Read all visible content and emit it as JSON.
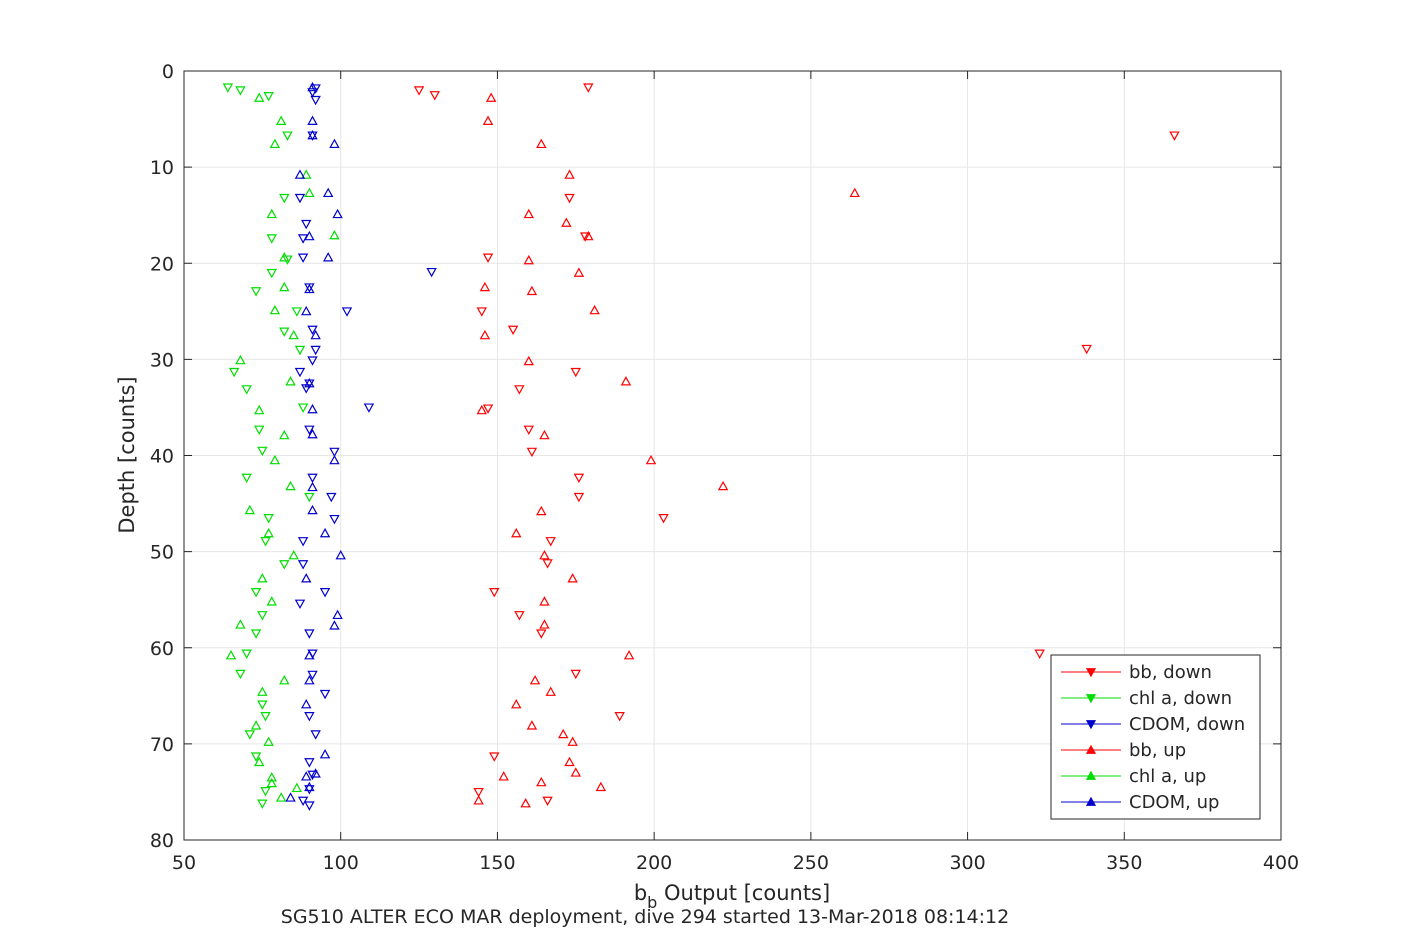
{
  "chart_data": {
    "type": "scatter",
    "title": "",
    "xlabel_main": "b",
    "xlabel_sub": "b",
    "xlabel_rest": " Output [counts]",
    "ylabel": "Depth [counts]",
    "caption": "SG510 ALTER ECO MAR deployment, dive 294 started 13-Mar-2018 08:14:12",
    "xlim": [
      50,
      400
    ],
    "ylim": [
      0,
      80
    ],
    "y_reversed": true,
    "grid": true,
    "legend_position": "bottom-right",
    "xticks": [
      {
        "v": 50,
        "label": "50"
      },
      {
        "v": 100,
        "label": "100"
      },
      {
        "v": 150,
        "label": "150"
      },
      {
        "v": 200,
        "label": "200"
      },
      {
        "v": 250,
        "label": "250"
      },
      {
        "v": 300,
        "label": "300"
      },
      {
        "v": 350,
        "label": "350"
      },
      {
        "v": 400,
        "label": "400"
      }
    ],
    "yticks": [
      {
        "v": 0,
        "label": "0"
      },
      {
        "v": 10,
        "label": "10"
      },
      {
        "v": 20,
        "label": "20"
      },
      {
        "v": 30,
        "label": "30"
      },
      {
        "v": 40,
        "label": "40"
      },
      {
        "v": 50,
        "label": "50"
      },
      {
        "v": 60,
        "label": "60"
      },
      {
        "v": 70,
        "label": "70"
      },
      {
        "v": 80,
        "label": "80"
      }
    ],
    "series": [
      {
        "name": "bb, down",
        "color": "#ff0000",
        "marker": "triangle-down",
        "points": [
          [
            125,
            2
          ],
          [
            130,
            2.5
          ],
          [
            179,
            1.7
          ],
          [
            366,
            6.7
          ],
          [
            178,
            17.2
          ],
          [
            173,
            13.2
          ],
          [
            147,
            19.4
          ],
          [
            145,
            25
          ],
          [
            155,
            26.9
          ],
          [
            338,
            28.9
          ],
          [
            175,
            31.3
          ],
          [
            157,
            33.1
          ],
          [
            147,
            35.1
          ],
          [
            160,
            37.3
          ],
          [
            161,
            39.6
          ],
          [
            176,
            42.3
          ],
          [
            176,
            44.3
          ],
          [
            203,
            46.5
          ],
          [
            167,
            48.9
          ],
          [
            166,
            51.2
          ],
          [
            149,
            54.2
          ],
          [
            157,
            56.6
          ],
          [
            164,
            58.5
          ],
          [
            323,
            60.6
          ],
          [
            175,
            62.7
          ],
          [
            189,
            67.1
          ],
          [
            149,
            71.3
          ],
          [
            144,
            75
          ],
          [
            166,
            75.9
          ]
        ]
      },
      {
        "name": "chl a, down",
        "color": "#00dd00",
        "marker": "triangle-down",
        "points": [
          [
            64,
            1.7
          ],
          [
            68,
            2
          ],
          [
            77,
            2.6
          ],
          [
            83,
            6.7
          ],
          [
            82,
            13.2
          ],
          [
            78,
            17.4
          ],
          [
            83,
            19.6
          ],
          [
            78,
            21
          ],
          [
            73,
            22.9
          ],
          [
            86,
            25
          ],
          [
            82,
            27.1
          ],
          [
            87,
            29
          ],
          [
            66,
            31.3
          ],
          [
            70,
            33.1
          ],
          [
            88,
            35
          ],
          [
            74,
            37.3
          ],
          [
            75,
            39.5
          ],
          [
            70,
            42.3
          ],
          [
            90,
            44.3
          ],
          [
            77,
            46.5
          ],
          [
            76,
            48.9
          ],
          [
            82,
            51.3
          ],
          [
            73,
            54.2
          ],
          [
            75,
            56.6
          ],
          [
            73,
            58.5
          ],
          [
            70,
            60.6
          ],
          [
            68,
            62.7
          ],
          [
            75,
            65.9
          ],
          [
            76,
            67.1
          ],
          [
            71,
            69
          ],
          [
            73,
            71.3
          ],
          [
            76,
            74.9
          ],
          [
            75,
            76.2
          ]
        ]
      },
      {
        "name": "CDOM, down",
        "color": "#0000cc",
        "marker": "triangle-down",
        "points": [
          [
            92,
            1.8
          ],
          [
            91,
            2.2
          ],
          [
            92,
            3
          ],
          [
            91,
            6.7
          ],
          [
            87,
            13.2
          ],
          [
            89,
            15.9
          ],
          [
            88,
            17.4
          ],
          [
            88,
            19.4
          ],
          [
            129,
            20.9
          ],
          [
            90,
            22.5
          ],
          [
            102,
            25
          ],
          [
            91,
            26.9
          ],
          [
            92,
            29
          ],
          [
            91,
            30.1
          ],
          [
            87,
            31.3
          ],
          [
            90,
            32.5
          ],
          [
            89,
            33
          ],
          [
            109,
            35
          ],
          [
            90,
            37.3
          ],
          [
            98,
            39.6
          ],
          [
            91,
            42.3
          ],
          [
            97,
            44.3
          ],
          [
            98,
            46.6
          ],
          [
            88,
            48.9
          ],
          [
            88,
            51.3
          ],
          [
            95,
            54.2
          ],
          [
            87,
            55.4
          ],
          [
            90,
            58.5
          ],
          [
            91,
            60.6
          ],
          [
            91,
            62.8
          ],
          [
            95,
            64.8
          ],
          [
            90,
            67.1
          ],
          [
            92,
            69
          ],
          [
            90,
            71.9
          ],
          [
            91,
            73.2
          ],
          [
            90,
            74.7
          ],
          [
            88,
            75.9
          ],
          [
            90,
            76.4
          ]
        ]
      },
      {
        "name": "bb, up",
        "color": "#ff0000",
        "marker": "triangle-up",
        "points": [
          [
            148,
            2.8
          ],
          [
            147,
            5.2
          ],
          [
            164,
            7.6
          ],
          [
            173,
            10.8
          ],
          [
            264,
            12.7
          ],
          [
            160,
            14.9
          ],
          [
            172,
            15.8
          ],
          [
            179,
            17.2
          ],
          [
            160,
            19.7
          ],
          [
            176,
            21
          ],
          [
            161,
            22.9
          ],
          [
            146,
            22.5
          ],
          [
            181,
            24.9
          ],
          [
            146,
            27.5
          ],
          [
            160,
            30.2
          ],
          [
            191,
            32.3
          ],
          [
            145,
            35.3
          ],
          [
            165,
            37.9
          ],
          [
            199,
            40.5
          ],
          [
            222,
            43.2
          ],
          [
            164,
            45.8
          ],
          [
            156,
            48.1
          ],
          [
            165,
            50.4
          ],
          [
            174,
            52.8
          ],
          [
            165,
            55.2
          ],
          [
            165,
            57.6
          ],
          [
            192,
            60.8
          ],
          [
            162,
            63.4
          ],
          [
            167,
            64.6
          ],
          [
            156,
            65.9
          ],
          [
            161,
            68.1
          ],
          [
            171,
            69
          ],
          [
            174,
            69.8
          ],
          [
            173,
            71.9
          ],
          [
            175,
            73
          ],
          [
            152,
            73.4
          ],
          [
            183,
            74.5
          ],
          [
            164,
            74
          ],
          [
            144,
            75.9
          ],
          [
            159,
            76.2
          ]
        ]
      },
      {
        "name": "chl a, up",
        "color": "#00dd00",
        "marker": "triangle-up",
        "points": [
          [
            74,
            2.8
          ],
          [
            81,
            5.2
          ],
          [
            79,
            7.6
          ],
          [
            89,
            10.8
          ],
          [
            90,
            12.7
          ],
          [
            78,
            14.9
          ],
          [
            98,
            17.1
          ],
          [
            82,
            19.4
          ],
          [
            82,
            22.5
          ],
          [
            79,
            24.9
          ],
          [
            85,
            27.5
          ],
          [
            68,
            30.1
          ],
          [
            84,
            32.3
          ],
          [
            74,
            35.3
          ],
          [
            82,
            37.9
          ],
          [
            79,
            40.5
          ],
          [
            84,
            43.2
          ],
          [
            71,
            45.7
          ],
          [
            77,
            48.1
          ],
          [
            85,
            50.4
          ],
          [
            75,
            52.8
          ],
          [
            78,
            55.2
          ],
          [
            68,
            57.6
          ],
          [
            65,
            60.8
          ],
          [
            82,
            63.4
          ],
          [
            75,
            64.6
          ],
          [
            73,
            68.1
          ],
          [
            77,
            69.8
          ],
          [
            74,
            71.9
          ],
          [
            78,
            73.5
          ],
          [
            78,
            74.1
          ],
          [
            86,
            74.6
          ],
          [
            81,
            75.6
          ]
        ]
      },
      {
        "name": "CDOM, up",
        "color": "#0000cc",
        "marker": "triangle-up",
        "points": [
          [
            91,
            1.7
          ],
          [
            91,
            5.2
          ],
          [
            91,
            6.7
          ],
          [
            98,
            7.6
          ],
          [
            87,
            10.8
          ],
          [
            96,
            12.7
          ],
          [
            99,
            14.9
          ],
          [
            90,
            17.2
          ],
          [
            96,
            19.4
          ],
          [
            90,
            22.7
          ],
          [
            89,
            25
          ],
          [
            92,
            27.5
          ],
          [
            90,
            32.5
          ],
          [
            91,
            35.2
          ],
          [
            91,
            37.8
          ],
          [
            98,
            40.5
          ],
          [
            91,
            43.3
          ],
          [
            91,
            45.7
          ],
          [
            95,
            48.1
          ],
          [
            100,
            50.4
          ],
          [
            89,
            52.8
          ],
          [
            99,
            56.6
          ],
          [
            98,
            57.7
          ],
          [
            90,
            60.8
          ],
          [
            90,
            63.4
          ],
          [
            89,
            65.9
          ],
          [
            95,
            71.1
          ],
          [
            89,
            73.4
          ],
          [
            92,
            73.1
          ],
          [
            90,
            74.5
          ],
          [
            84,
            75.6
          ]
        ]
      }
    ]
  }
}
